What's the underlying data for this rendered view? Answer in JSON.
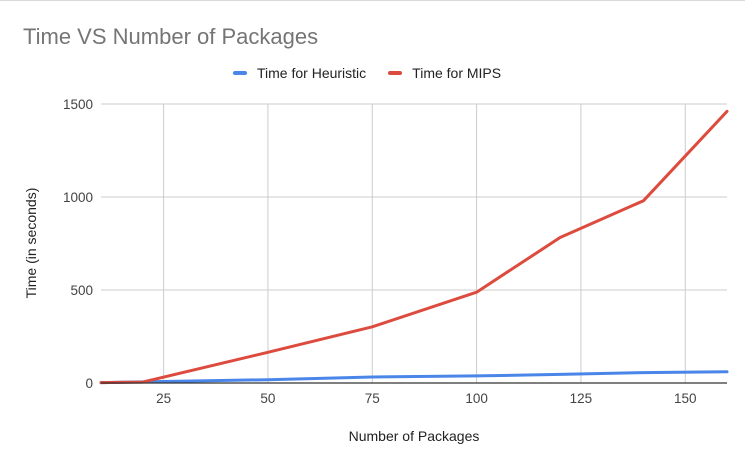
{
  "chart_data": {
    "type": "line",
    "title": "Time VS Number of Packages",
    "xlabel": "Number of Packages",
    "ylabel": "Time (in seconds)",
    "xlim": [
      10,
      160
    ],
    "ylim": [
      0,
      1500
    ],
    "xticks": [
      25,
      50,
      75,
      100,
      125,
      150
    ],
    "yticks": [
      0,
      500,
      1000,
      1500
    ],
    "grid": true,
    "legend_position": "top",
    "series": [
      {
        "name": "Time for Heuristic",
        "color": "#4a86e8",
        "points": [
          [
            10,
            2
          ],
          [
            20,
            6
          ],
          [
            50,
            18
          ],
          [
            75,
            32
          ],
          [
            100,
            38
          ],
          [
            120,
            46
          ],
          [
            140,
            56
          ],
          [
            160,
            60
          ]
        ]
      },
      {
        "name": "Time for MIPS",
        "color": "#dd4b3e",
        "points": [
          [
            10,
            2
          ],
          [
            20,
            5
          ],
          [
            50,
            165
          ],
          [
            75,
            302
          ],
          [
            100,
            488
          ],
          [
            120,
            782
          ],
          [
            140,
            980
          ],
          [
            160,
            1460
          ]
        ]
      }
    ]
  }
}
